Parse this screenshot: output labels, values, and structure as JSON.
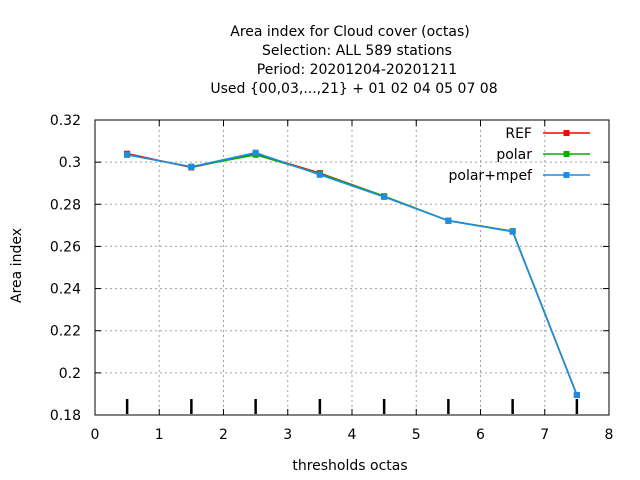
{
  "chart_data": {
    "type": "line",
    "title_lines": [
      "Area index  for Cloud cover (octas)",
      "Selection: ALL    589 stations",
      "Period: 20201204-20201211",
      "Used {00,03,...,21} + 01 02 04 05 07 08"
    ],
    "xlabel": "thresholds octas",
    "ylabel": "Area index",
    "xlim": [
      0,
      8
    ],
    "ylim": [
      0.18,
      0.32
    ],
    "xticks": [
      0,
      1,
      2,
      3,
      4,
      5,
      6,
      7,
      8
    ],
    "yticks": [
      0.18,
      0.2,
      0.22,
      0.24,
      0.26,
      0.28,
      0.3,
      0.32
    ],
    "ytick_labels": [
      "0.18",
      "0.2",
      "0.22",
      "0.24",
      "0.26",
      "0.28",
      "0.3",
      "0.32"
    ],
    "grid": true,
    "legend_position": "top-right",
    "x": [
      0.5,
      1.5,
      2.5,
      3.5,
      4.5,
      5.5,
      6.5,
      7.5
    ],
    "series": [
      {
        "name": "REF",
        "color": "#ff0000",
        "values": [
          0.304,
          0.2975,
          0.304,
          0.2948,
          0.2838,
          0.2722,
          0.2672,
          0.1895
        ]
      },
      {
        "name": "polar",
        "color": "#00b000",
        "values": [
          0.3035,
          0.2978,
          0.3035,
          0.2945,
          0.2838,
          0.2722,
          0.2672,
          0.1895
        ]
      },
      {
        "name": "polar+mpef",
        "color": "#1e8ce6",
        "values": [
          0.3035,
          0.2978,
          0.3045,
          0.294,
          0.2835,
          0.2722,
          0.267,
          0.1895
        ]
      }
    ]
  }
}
